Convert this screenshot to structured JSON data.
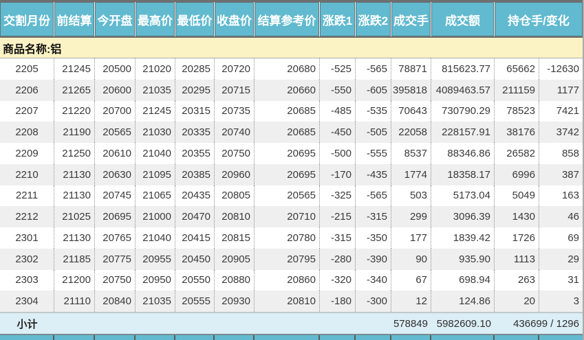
{
  "header": {
    "columns": [
      "交割月份",
      "前结算",
      "今开盘",
      "最高价",
      "最低价",
      "收盘价",
      "结算参考价",
      "涨跌1",
      "涨跌2",
      "成交手",
      "成交额",
      "持仓手/变化"
    ]
  },
  "commodity": {
    "label": "商品名称:铝"
  },
  "rows": [
    [
      "2205",
      "21245",
      "20500",
      "21020",
      "20285",
      "20720",
      "20680",
      "-525",
      "-565",
      "78871",
      "815623.77",
      "65662",
      "-12630"
    ],
    [
      "2206",
      "21265",
      "20600",
      "21035",
      "20295",
      "20715",
      "20660",
      "-550",
      "-605",
      "395818",
      "4089463.57",
      "211159",
      "1177"
    ],
    [
      "2207",
      "21220",
      "20700",
      "21245",
      "20315",
      "20735",
      "20685",
      "-485",
      "-535",
      "70643",
      "730790.29",
      "78523",
      "7421"
    ],
    [
      "2208",
      "21190",
      "20565",
      "21030",
      "20335",
      "20740",
      "20685",
      "-450",
      "-505",
      "22058",
      "228157.91",
      "38176",
      "3742"
    ],
    [
      "2209",
      "21250",
      "20610",
      "21040",
      "20355",
      "20750",
      "20695",
      "-500",
      "-555",
      "8537",
      "88346.86",
      "26582",
      "858"
    ],
    [
      "2210",
      "21130",
      "20630",
      "21095",
      "20385",
      "20960",
      "20695",
      "-170",
      "-435",
      "1774",
      "18358.17",
      "6996",
      "387"
    ],
    [
      "2211",
      "21130",
      "20745",
      "21065",
      "20435",
      "20805",
      "20565",
      "-325",
      "-565",
      "503",
      "5173.04",
      "5049",
      "163"
    ],
    [
      "2212",
      "21025",
      "20695",
      "21000",
      "20470",
      "20810",
      "20710",
      "-215",
      "-315",
      "299",
      "3096.39",
      "1430",
      "46"
    ],
    [
      "2301",
      "21130",
      "20765",
      "21040",
      "20415",
      "20815",
      "20780",
      "-315",
      "-350",
      "177",
      "1839.42",
      "1726",
      "69"
    ],
    [
      "2302",
      "21185",
      "20775",
      "20955",
      "20450",
      "20905",
      "20795",
      "-280",
      "-390",
      "90",
      "935.90",
      "1113",
      "29"
    ],
    [
      "2303",
      "21200",
      "20750",
      "20950",
      "20550",
      "20880",
      "20860",
      "-320",
      "-340",
      "67",
      "698.94",
      "263",
      "31"
    ],
    [
      "2304",
      "21110",
      "20840",
      "21035",
      "20555",
      "20930",
      "20810",
      "-180",
      "-300",
      "12",
      "124.86",
      "20",
      "3"
    ]
  ],
  "subtotal": {
    "label": "小计",
    "volume": "578849",
    "turnover": "5982609.10",
    "open_interest_change": "436699 / 1296"
  },
  "colors": {
    "header_bg": "#61BACF",
    "header_text": "#FFFFFF",
    "commodity_bg": "#FBF3C4",
    "row_alt_bg": "#EFEFEF",
    "subtotal_bg": "#DCEEF6"
  }
}
